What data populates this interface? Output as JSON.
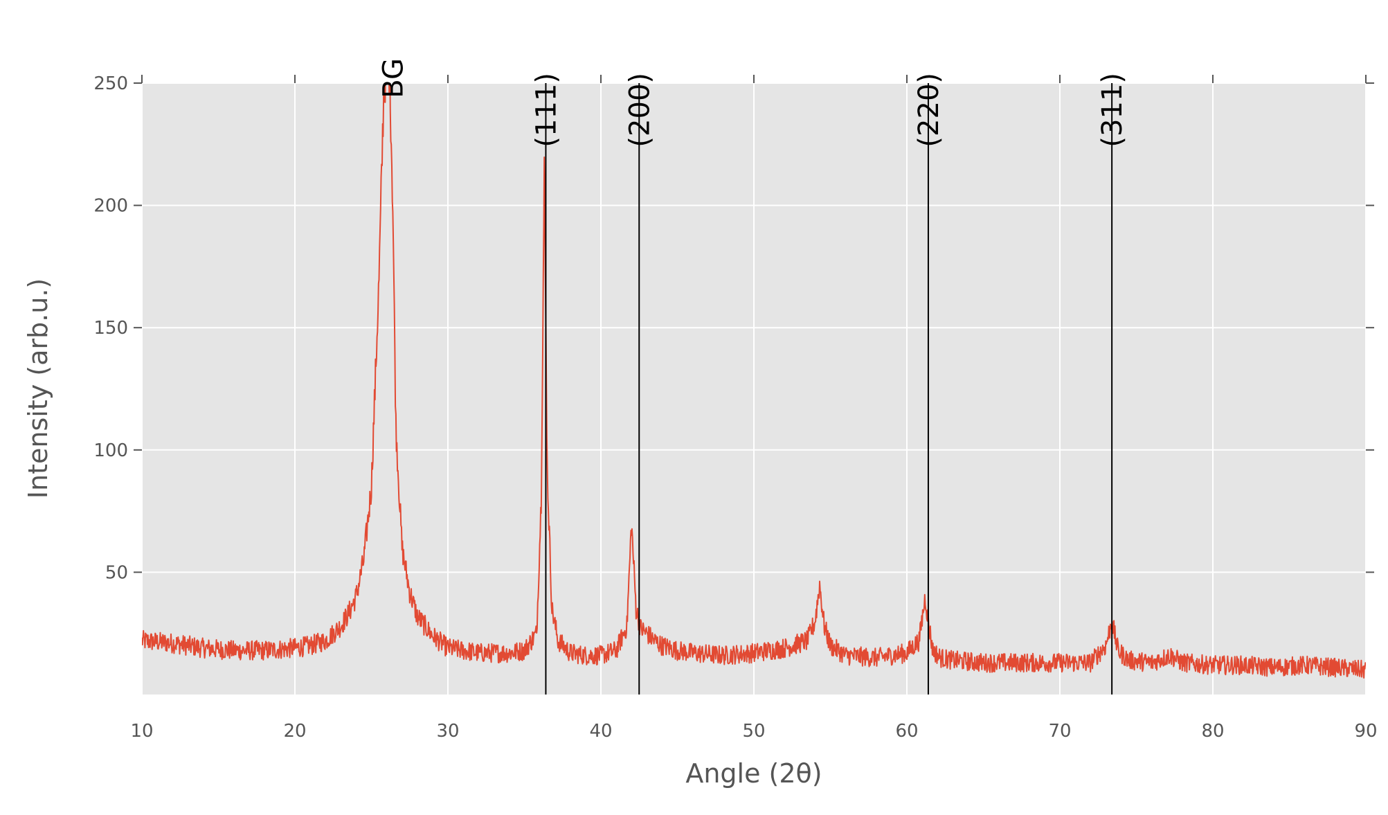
{
  "chart_data": {
    "type": "line",
    "title": "",
    "xlabel": "Angle (2θ)",
    "ylabel": "Intensity (arb.u.)",
    "xlim": [
      10,
      90
    ],
    "ylim": [
      0,
      250
    ],
    "xticks": [
      10,
      20,
      30,
      40,
      50,
      60,
      70,
      80,
      90
    ],
    "yticks": [
      50,
      100,
      150,
      200,
      250
    ],
    "grid": true,
    "legend": "none",
    "colors": {
      "series": "#e24a33",
      "plot_bg": "#e5e5e5",
      "grid": "#ffffff",
      "marker_line": "#000000"
    },
    "series": [
      {
        "x": [
          10,
          12,
          14,
          16,
          18,
          20,
          21,
          22,
          22.5,
          23,
          23.5,
          24,
          24.5,
          25,
          25.5,
          25.8,
          26.0,
          26.2,
          26.4,
          26.6,
          27,
          27.5,
          28,
          29,
          30,
          31,
          32,
          33,
          34,
          35,
          35.8,
          36.1,
          36.3,
          36.5,
          36.8,
          37.2,
          38,
          39,
          40,
          41,
          41.7,
          42.0,
          42.3,
          42.6,
          43,
          43.5,
          44,
          45,
          46,
          48,
          50,
          52,
          53.5,
          54.0,
          54.3,
          54.6,
          55,
          56,
          58,
          60,
          60.8,
          61.2,
          61.4,
          61.7,
          62.2,
          63,
          65,
          67,
          70,
          72,
          73.0,
          73.4,
          73.8,
          74.5,
          76,
          77.2,
          78,
          80,
          82,
          84,
          86,
          88,
          90
        ],
        "y": [
          22,
          21,
          19,
          18,
          18,
          19,
          20,
          22,
          25,
          28,
          33,
          40,
          55,
          85,
          170,
          245,
          260,
          255,
          200,
          110,
          60,
          42,
          32,
          24,
          19,
          18,
          17,
          17,
          17,
          18,
          25,
          80,
          215,
          90,
          35,
          22,
          17,
          16,
          16,
          18,
          28,
          70,
          35,
          27,
          25,
          22,
          20,
          18,
          17,
          16,
          17,
          19,
          22,
          30,
          45,
          28,
          20,
          16,
          15,
          17,
          22,
          40,
          30,
          18,
          15,
          14,
          13,
          13,
          13,
          13,
          20,
          30,
          18,
          14,
          13,
          16,
          13,
          12,
          12,
          11,
          12,
          11,
          10
        ]
      }
    ],
    "markers": [
      {
        "label": "BG",
        "x": 26.4,
        "line": false
      },
      {
        "label": "(111)",
        "x": 36.4,
        "line": true
      },
      {
        "label": "(200)",
        "x": 42.5,
        "line": true
      },
      {
        "label": "(220)",
        "x": 61.4,
        "line": true
      },
      {
        "label": "(311)",
        "x": 73.4,
        "line": true
      }
    ]
  }
}
